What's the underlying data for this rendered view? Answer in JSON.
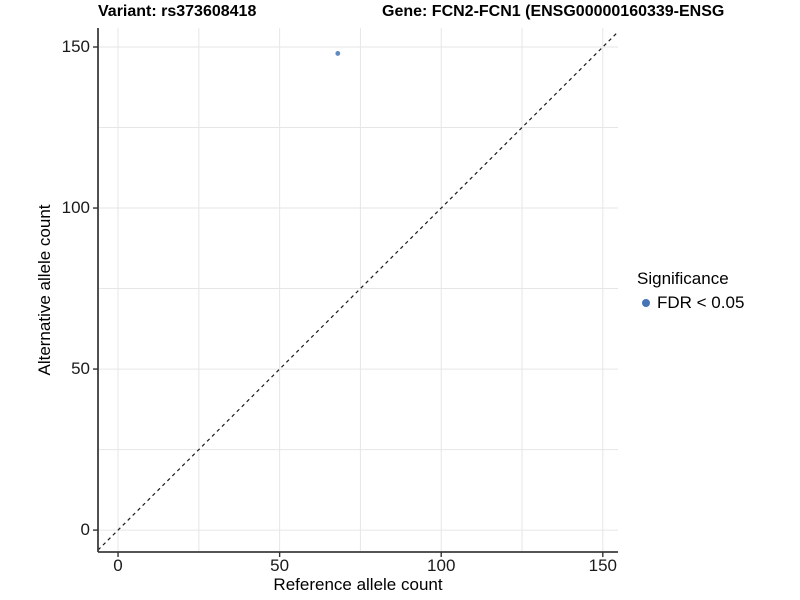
{
  "chart_data": {
    "type": "scatter",
    "title_variant": "Variant: rs373608418",
    "title_gene": "Gene: FCN2-FCN1 (ENSG00000160339-ENSG",
    "xlabel": "Reference allele count",
    "ylabel": "Alternative allele count",
    "xlim": [
      -6.2,
      154.7
    ],
    "ylim": [
      -6.8,
      155.9
    ],
    "x_ticks": [
      0,
      50,
      100,
      150
    ],
    "y_ticks": [
      0,
      50,
      100,
      150
    ],
    "gridlines_x": [
      0,
      25,
      50,
      75,
      100,
      125,
      150
    ],
    "gridlines_y": [
      0,
      25,
      50,
      75,
      100,
      125,
      150
    ],
    "grid": true,
    "series": [
      {
        "name": "FDR < 0.05",
        "color": "#4575b4",
        "points": [
          {
            "x": 68,
            "y": 148
          }
        ]
      }
    ],
    "reference_line": {
      "type": "identity y=x",
      "style": "dashed",
      "color": "#1a1a1a"
    },
    "legend": {
      "position": "right",
      "title": "Significance",
      "items": [
        {
          "label": "FDR < 0.05",
          "color": "#4575b4"
        }
      ]
    }
  },
  "colors": {
    "background": "#ffffff",
    "grid": "#e6e6e6",
    "axis": "#3c3c3c",
    "tick": "#333333",
    "tick_text": "#1a1a1a",
    "text": "#000000",
    "point": "#4575b4"
  }
}
